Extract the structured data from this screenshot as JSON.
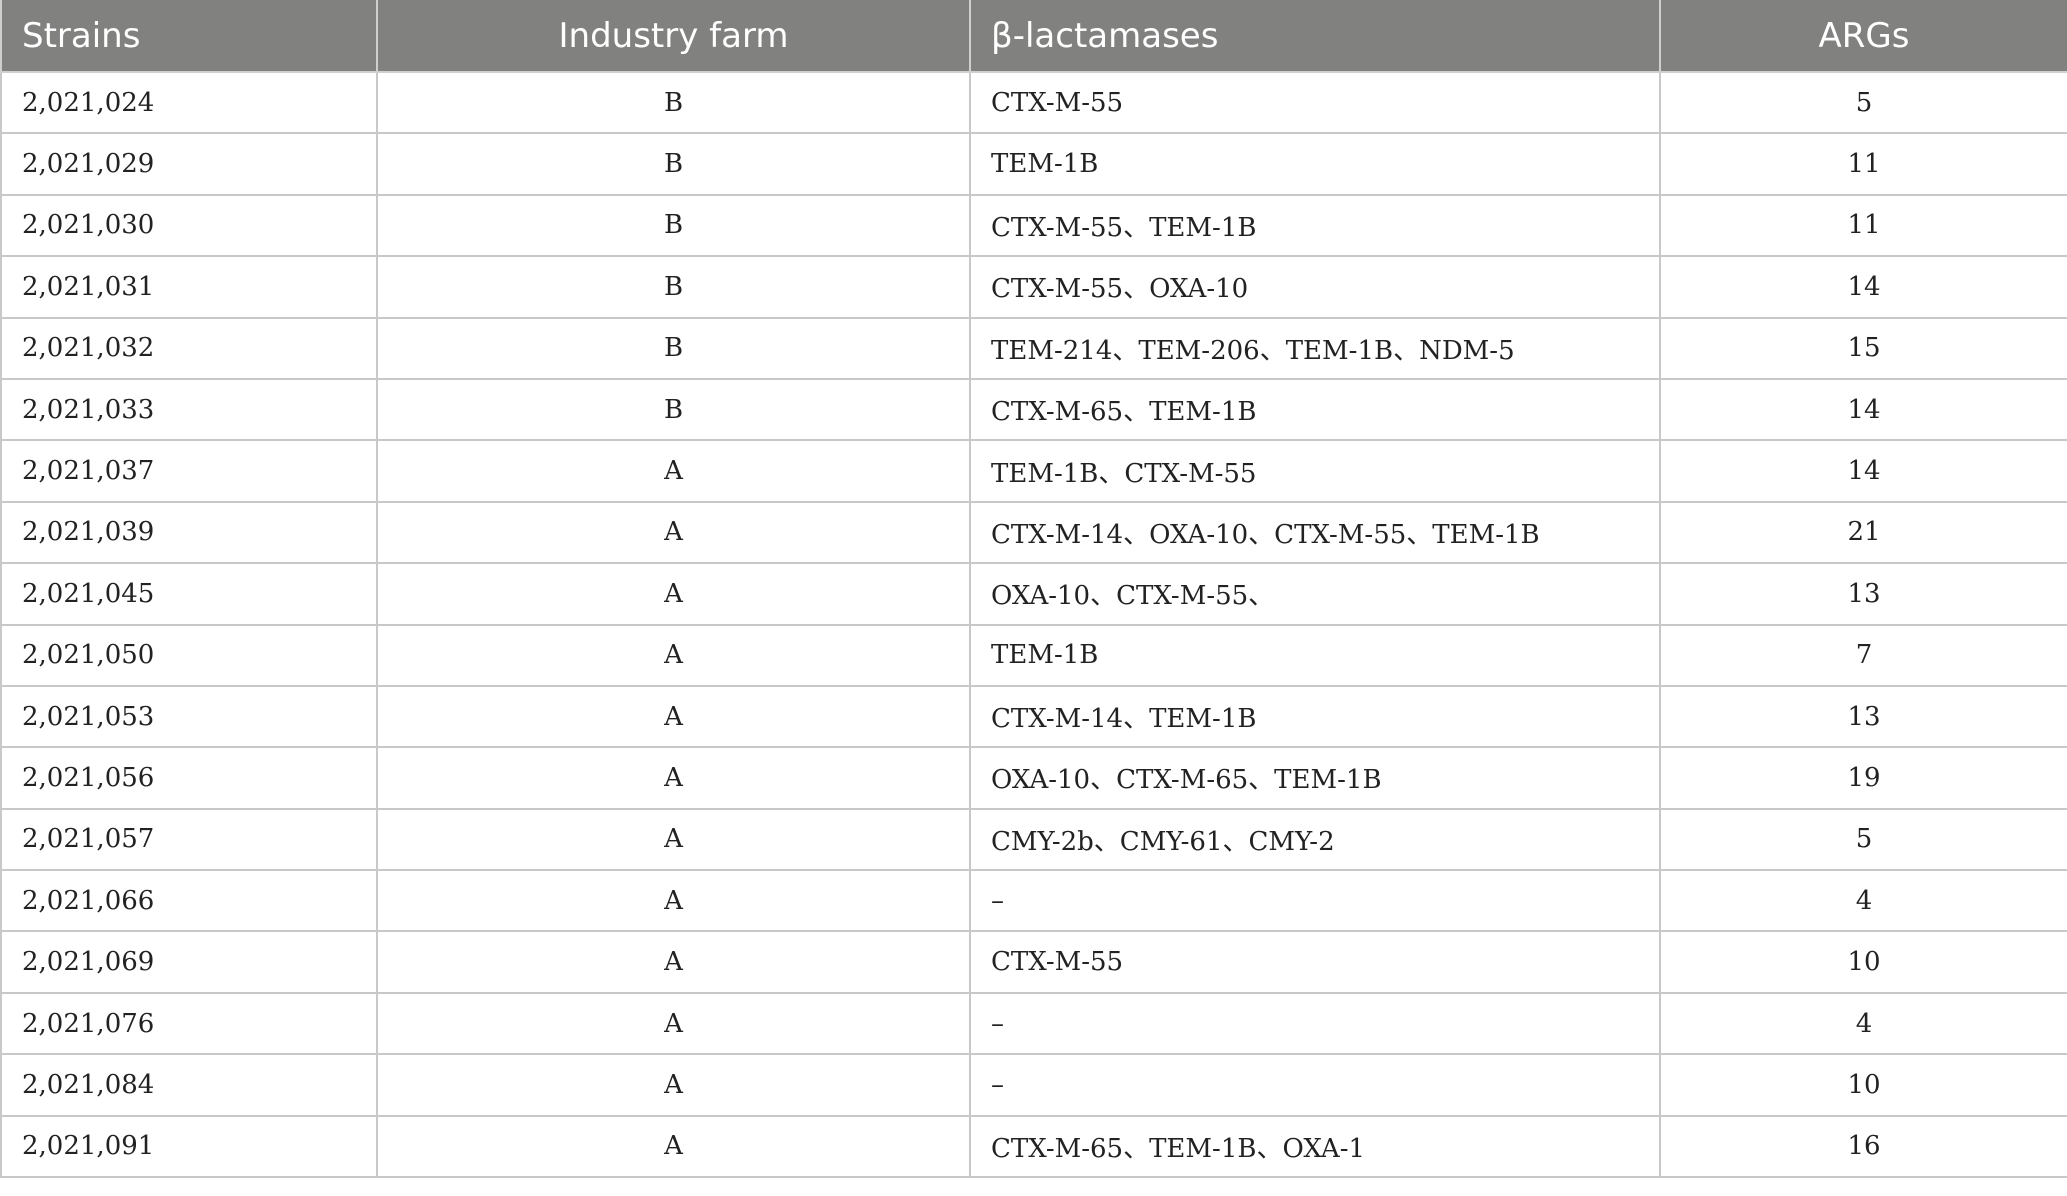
{
  "table": {
    "headers": [
      "Strains",
      "Industry farm",
      "β-lactamases",
      "ARGs"
    ],
    "rows": [
      [
        "2,021,024",
        "B",
        "CTX-M-55",
        "5"
      ],
      [
        "2,021,029",
        "B",
        "TEM-1B",
        "11"
      ],
      [
        "2,021,030",
        "B",
        "CTX-M-55、TEM-1B",
        "11"
      ],
      [
        "2,021,031",
        "B",
        "CTX-M-55、OXA-10",
        "14"
      ],
      [
        "2,021,032",
        "B",
        "TEM-214、TEM-206、TEM-1B、NDM-5",
        "15"
      ],
      [
        "2,021,033",
        "B",
        "CTX-M-65、TEM-1B",
        "14"
      ],
      [
        "2,021,037",
        "A",
        "TEM-1B、CTX-M-55",
        "14"
      ],
      [
        "2,021,039",
        "A",
        "CTX-M-14、OXA-10、CTX-M-55、TEM-1B",
        "21"
      ],
      [
        "2,021,045",
        "A",
        "OXA-10、CTX-M-55、",
        "13"
      ],
      [
        "2,021,050",
        "A",
        "TEM-1B",
        "7"
      ],
      [
        "2,021,053",
        "A",
        "CTX-M-14、TEM-1B",
        "13"
      ],
      [
        "2,021,056",
        "A",
        "OXA-10、CTX-M-65、TEM-1B",
        "19"
      ],
      [
        "2,021,057",
        "A",
        "CMY-2b、CMY-61、CMY-2",
        "5"
      ],
      [
        "2,021,066",
        "A",
        "–",
        "4"
      ],
      [
        "2,021,069",
        "A",
        "CTX-M-55",
        "10"
      ],
      [
        "2,021,076",
        "A",
        "–",
        "4"
      ],
      [
        "2,021,084",
        "A",
        "–",
        "10"
      ],
      [
        "2,021,091",
        "A",
        "CTX-M-65、TEM-1B、OXA-1",
        "16"
      ]
    ]
  }
}
